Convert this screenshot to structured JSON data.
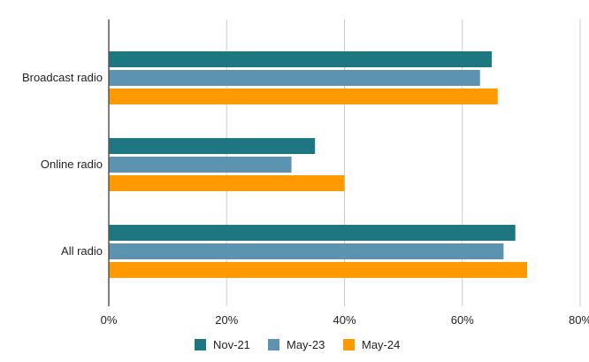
{
  "chart_data": {
    "type": "bar",
    "orientation": "horizontal",
    "title": "",
    "xlabel": "",
    "ylabel": "",
    "categories": [
      "Broadcast radio",
      "Online radio",
      "All radio"
    ],
    "series": [
      {
        "name": "Nov-21",
        "color": "#1e7780",
        "values": [
          65,
          35,
          69
        ]
      },
      {
        "name": "May-23",
        "color": "#5b93b0",
        "values": [
          63,
          31,
          67
        ]
      },
      {
        "name": "May-24",
        "color": "#ff9900",
        "values": [
          66,
          40,
          71
        ]
      }
    ],
    "xlim": [
      0,
      80
    ],
    "xticks": [
      0,
      20,
      40,
      60,
      80
    ],
    "tick_format": "percent",
    "tick_labels": [
      "0%",
      "20%",
      "40%",
      "60%",
      "80%"
    ],
    "grid": true,
    "legend_position": "bottom-center"
  }
}
